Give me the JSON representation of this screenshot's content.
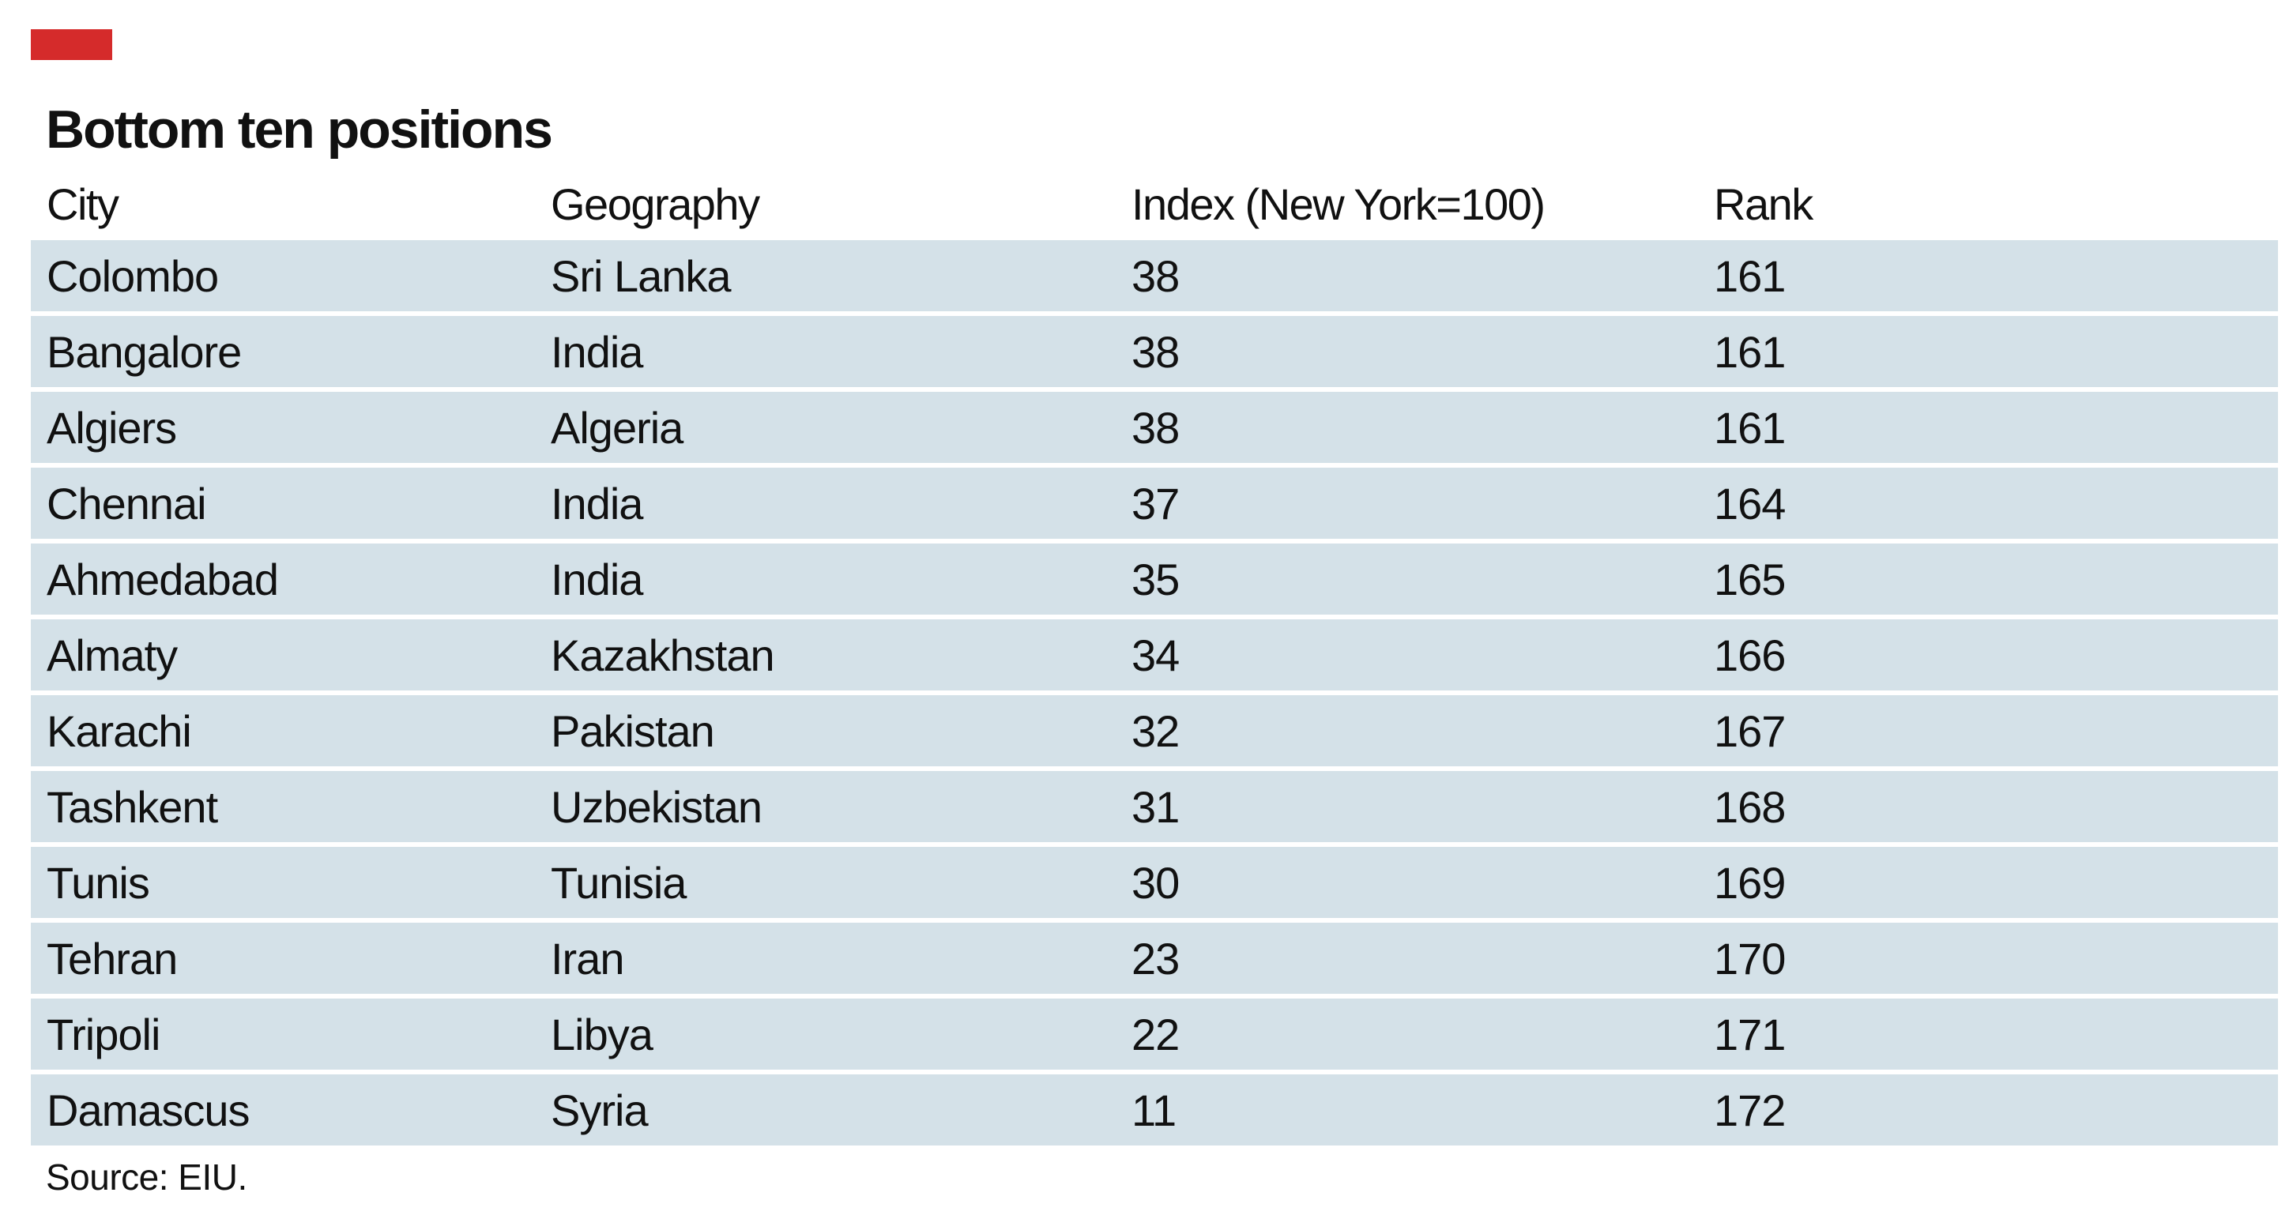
{
  "colors": {
    "accent": "#d52b2b",
    "row_background": "#d4e1e8",
    "text": "#111111"
  },
  "chart_data": {
    "type": "table",
    "title": "Bottom ten positions",
    "columns": [
      "City",
      "Geography",
      "Index (New York=100)",
      "Rank"
    ],
    "rows": [
      {
        "city": "Colombo",
        "geography": "Sri Lanka",
        "index": 38,
        "rank": 161
      },
      {
        "city": "Bangalore",
        "geography": "India",
        "index": 38,
        "rank": 161
      },
      {
        "city": "Algiers",
        "geography": "Algeria",
        "index": 38,
        "rank": 161
      },
      {
        "city": "Chennai",
        "geography": "India",
        "index": 37,
        "rank": 164
      },
      {
        "city": "Ahmedabad",
        "geography": "India",
        "index": 35,
        "rank": 165
      },
      {
        "city": "Almaty",
        "geography": "Kazakhstan",
        "index": 34,
        "rank": 166
      },
      {
        "city": "Karachi",
        "geography": "Pakistan",
        "index": 32,
        "rank": 167
      },
      {
        "city": "Tashkent",
        "geography": "Uzbekistan",
        "index": 31,
        "rank": 168
      },
      {
        "city": "Tunis",
        "geography": "Tunisia",
        "index": 30,
        "rank": 169
      },
      {
        "city": "Tehran",
        "geography": "Iran",
        "index": 23,
        "rank": 170
      },
      {
        "city": "Tripoli",
        "geography": "Libya",
        "index": 22,
        "rank": 171
      },
      {
        "city": "Damascus",
        "geography": "Syria",
        "index": 11,
        "rank": 172
      }
    ],
    "source": "Source: EIU."
  }
}
